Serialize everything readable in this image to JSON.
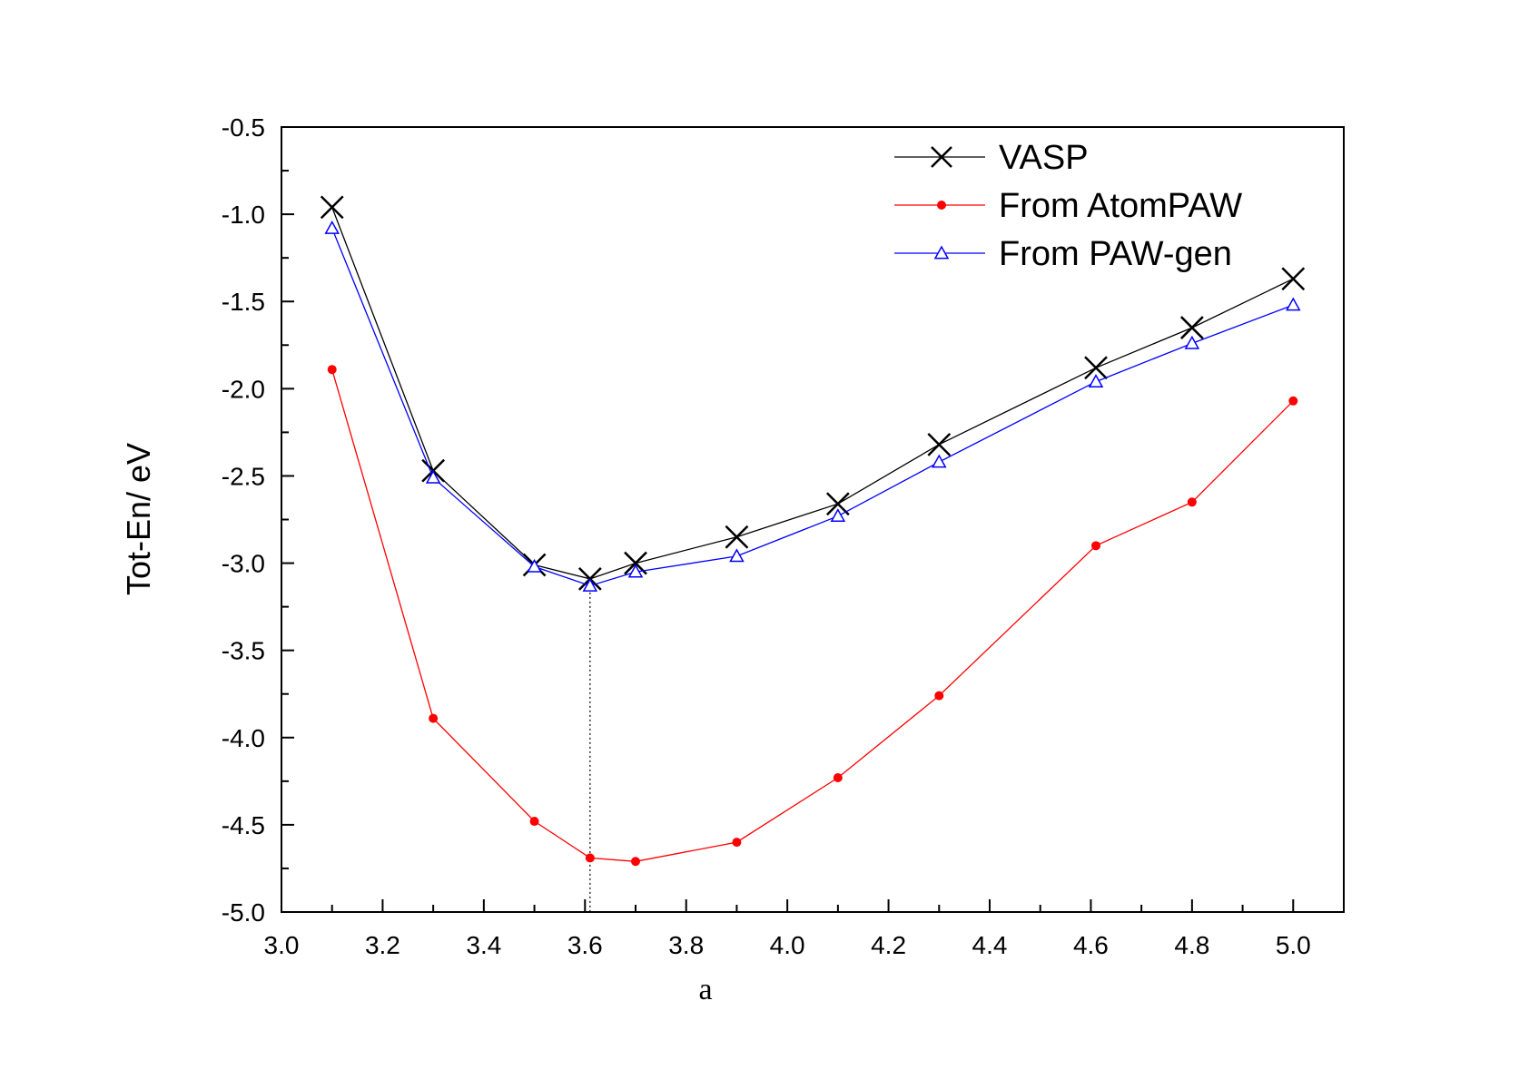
{
  "chart_data": {
    "type": "line",
    "title": "",
    "xlabel": "a",
    "ylabel": "Tot-En/ eV",
    "xlim": [
      3.0,
      5.1
    ],
    "ylim": [
      -5.0,
      -0.5
    ],
    "xticks": [
      3.0,
      3.2,
      3.4,
      3.6,
      3.8,
      4.0,
      4.2,
      4.4,
      4.6,
      4.8,
      5.0
    ],
    "xtick_labels": [
      "3.0",
      "3.2",
      "3.4",
      "3.6",
      "3.8",
      "4.0",
      "4.2",
      "4.4",
      "4.6",
      "4.8",
      "5.0"
    ],
    "yticks": [
      -0.5,
      -1.0,
      -1.5,
      -2.0,
      -2.5,
      -3.0,
      -3.5,
      -4.0,
      -4.5,
      -5.0
    ],
    "ytick_labels": [
      "-0.5",
      "-1.0",
      "-1.5",
      "-2.0",
      "-2.5",
      "-3.0",
      "-3.5",
      "-4.0",
      "-4.5",
      "-5.0"
    ],
    "grid": false,
    "legend_position": "top-right",
    "reference_line_x": 3.61,
    "series": [
      {
        "name": "VASP",
        "color": "#000000",
        "marker": "x-cross",
        "x": [
          3.1,
          3.3,
          3.5,
          3.61,
          3.7,
          3.9,
          4.1,
          4.3,
          4.61,
          4.8,
          5.0
        ],
        "y": [
          -0.96,
          -2.47,
          -3.01,
          -3.09,
          -3.0,
          -2.85,
          -2.66,
          -2.32,
          -1.88,
          -1.65,
          -1.37
        ]
      },
      {
        "name": "From AtomPAW",
        "color": "#ff0000",
        "marker": "filled-circle",
        "x": [
          3.1,
          3.3,
          3.5,
          3.61,
          3.7,
          3.9,
          4.1,
          4.3,
          4.61,
          4.8,
          5.0
        ],
        "y": [
          -1.89,
          -3.89,
          -4.48,
          -4.69,
          -4.71,
          -4.6,
          -4.23,
          -3.76,
          -2.9,
          -2.65,
          -2.07
        ]
      },
      {
        "name": "From PAW-gen",
        "color": "#0000ff",
        "marker": "open-triangle",
        "x": [
          3.1,
          3.3,
          3.5,
          3.61,
          3.7,
          3.9,
          4.1,
          4.3,
          4.61,
          4.8,
          5.0
        ],
        "y": [
          -1.08,
          -2.51,
          -3.02,
          -3.13,
          -3.05,
          -2.96,
          -2.73,
          -2.42,
          -1.96,
          -1.74,
          -1.52
        ]
      }
    ]
  }
}
